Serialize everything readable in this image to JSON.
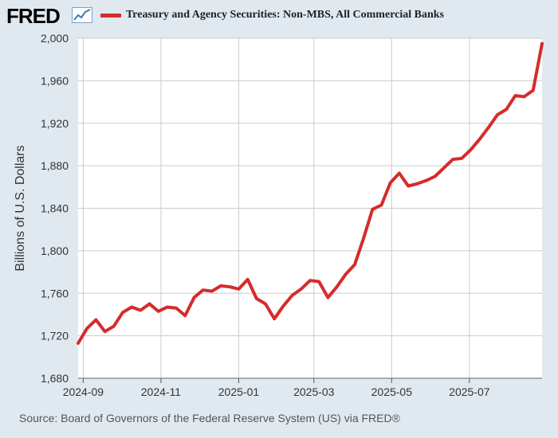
{
  "header": {
    "logo_text": "FRED",
    "logo_icon": "line-chart-icon"
  },
  "footer": {
    "source": "Source: Board of Governors of the Federal Reserve System (US) via FRED®"
  },
  "colors": {
    "line": "#d62b2b",
    "background": "#e1e9f0",
    "plot": "#ffffff",
    "grid": "#c8ccd0"
  },
  "chart_data": {
    "type": "line",
    "title": "",
    "xlabel": "",
    "ylabel": "Billions of U.S. Dollars",
    "ylim": [
      1680,
      2000
    ],
    "yticks": [
      1680,
      1720,
      1760,
      1800,
      1840,
      1880,
      1920,
      1960,
      2000
    ],
    "ytick_labels": [
      "1,680",
      "1,720",
      "1,760",
      "1,800",
      "1,840",
      "1,880",
      "1,920",
      "1,960",
      "2,000"
    ],
    "xlim": [
      "2024-08-28",
      "2025-08-27"
    ],
    "xticks": [
      "2024-09-01",
      "2024-11-01",
      "2025-01-01",
      "2025-03-01",
      "2025-05-01",
      "2025-07-01"
    ],
    "xtick_labels": [
      "2024-09",
      "2024-11",
      "2025-01",
      "2025-03",
      "2025-05",
      "2025-07"
    ],
    "grid": true,
    "legend_position": "top",
    "series": [
      {
        "name": "Treasury and Agency Securities: Non-MBS, All Commercial Banks",
        "x": [
          "2024-08-28",
          "2024-09-04",
          "2024-09-11",
          "2024-09-18",
          "2024-09-25",
          "2024-10-02",
          "2024-10-09",
          "2024-10-16",
          "2024-10-23",
          "2024-10-30",
          "2024-11-06",
          "2024-11-13",
          "2024-11-20",
          "2024-11-27",
          "2024-12-04",
          "2024-12-11",
          "2024-12-18",
          "2024-12-25",
          "2025-01-01",
          "2025-01-08",
          "2025-01-15",
          "2025-01-22",
          "2025-01-29",
          "2025-02-05",
          "2025-02-12",
          "2025-02-19",
          "2025-02-26",
          "2025-03-05",
          "2025-03-12",
          "2025-03-19",
          "2025-03-26",
          "2025-04-02",
          "2025-04-09",
          "2025-04-16",
          "2025-04-23",
          "2025-04-30",
          "2025-05-07",
          "2025-05-14",
          "2025-05-21",
          "2025-05-28",
          "2025-06-04",
          "2025-06-11",
          "2025-06-18",
          "2025-06-25",
          "2025-07-02",
          "2025-07-09",
          "2025-07-16",
          "2025-07-23",
          "2025-07-30",
          "2025-08-06",
          "2025-08-13",
          "2025-08-20",
          "2025-08-27"
        ],
        "values": [
          1713,
          1727,
          1735,
          1724,
          1729,
          1742,
          1747,
          1744,
          1750,
          1743,
          1747,
          1746,
          1739,
          1756,
          1763,
          1762,
          1767,
          1766,
          1764,
          1773,
          1755,
          1750,
          1736,
          1748,
          1758,
          1764,
          1772,
          1771,
          1756,
          1766,
          1778,
          1787,
          1812,
          1839,
          1843,
          1864,
          1873,
          1861,
          1863,
          1866,
          1870,
          1878,
          1886,
          1887,
          1895,
          1905,
          1916,
          1928,
          1933,
          1946,
          1945,
          1951,
          1995
        ]
      }
    ]
  }
}
